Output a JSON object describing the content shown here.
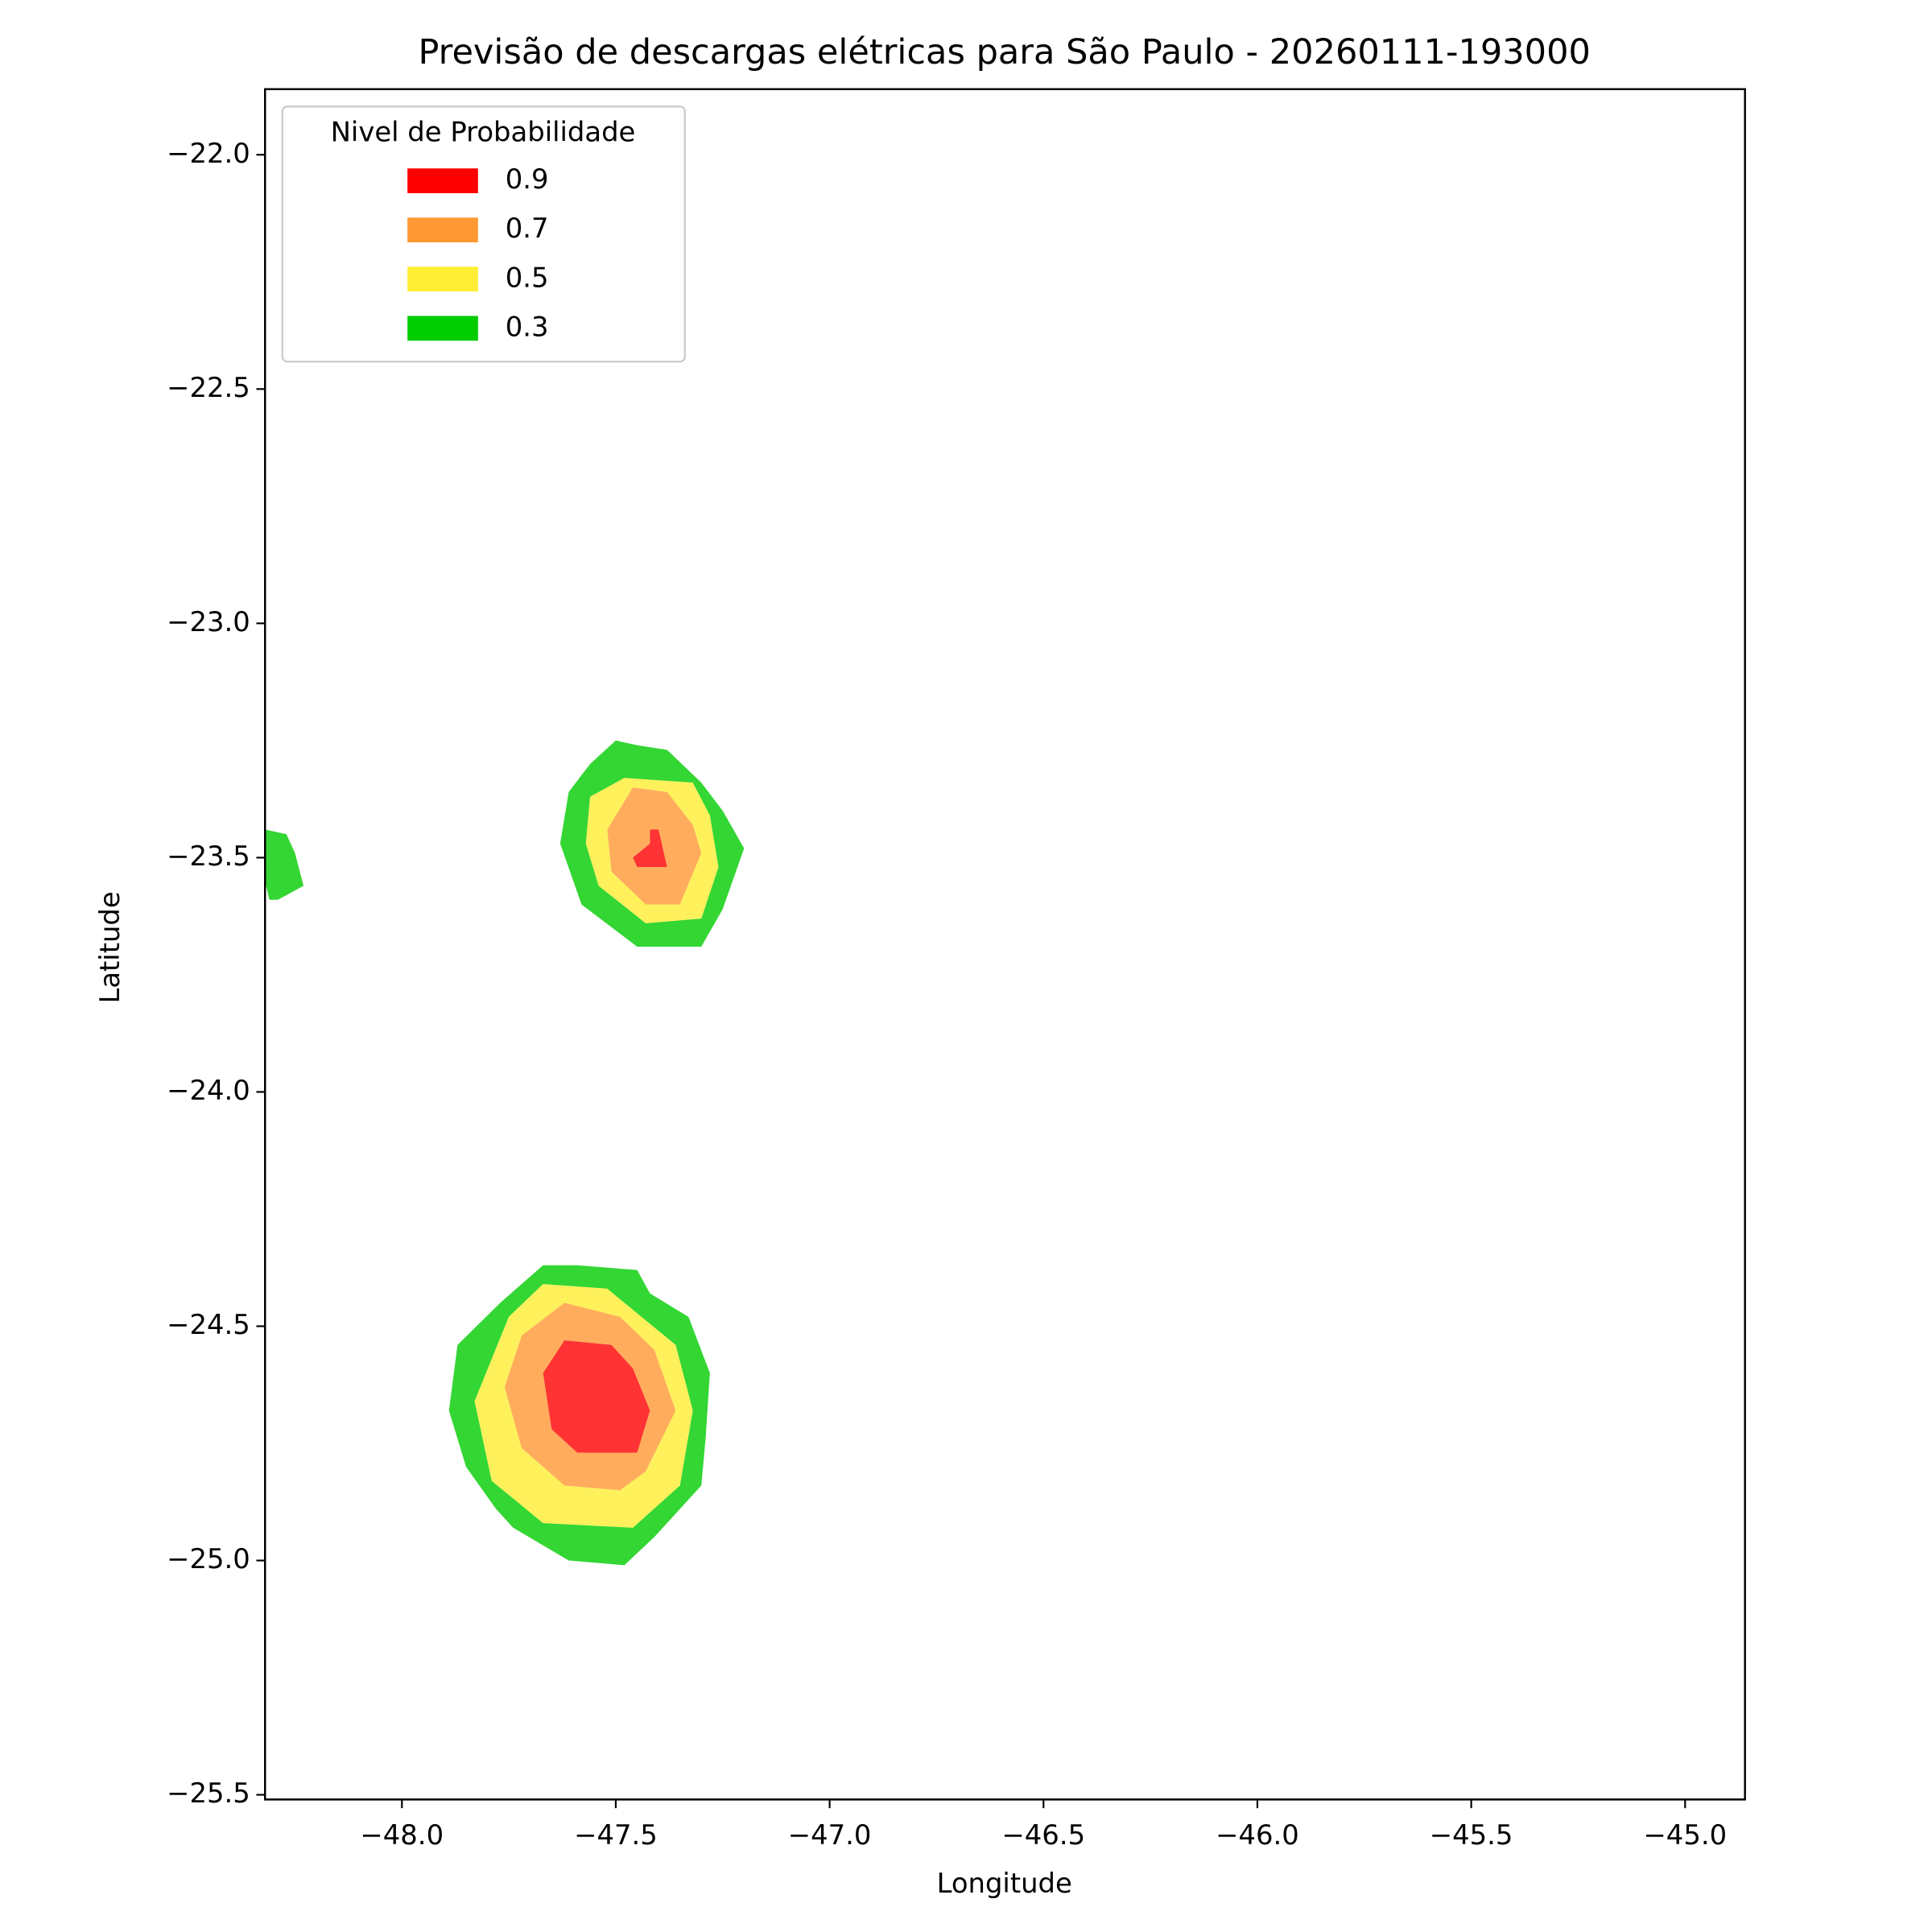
{
  "chart_data": {
    "type": "contour",
    "title": "Previsão de descargas elétricas para São Paulo - 20260111-193000",
    "xlabel": "Longitude",
    "ylabel": "Latitude",
    "xlim": [
      -48.32,
      -44.86
    ],
    "ylim": [
      -25.51,
      -21.86
    ],
    "xticks": [
      {
        "value": -48.0,
        "label": "−48.0"
      },
      {
        "value": -47.5,
        "label": "−47.5"
      },
      {
        "value": -47.0,
        "label": "−47.0"
      },
      {
        "value": -46.5,
        "label": "−46.5"
      },
      {
        "value": -46.0,
        "label": "−46.0"
      },
      {
        "value": -45.5,
        "label": "−45.5"
      },
      {
        "value": -45.0,
        "label": "−45.0"
      }
    ],
    "yticks": [
      {
        "value": -22.0,
        "label": "−22.0"
      },
      {
        "value": -22.5,
        "label": "−22.5"
      },
      {
        "value": -23.0,
        "label": "−23.0"
      },
      {
        "value": -23.5,
        "label": "−23.5"
      },
      {
        "value": -24.0,
        "label": "−24.0"
      },
      {
        "value": -24.5,
        "label": "−24.5"
      },
      {
        "value": -25.0,
        "label": "−25.0"
      },
      {
        "value": -25.5,
        "label": "−25.5"
      }
    ],
    "legend_title": "Nivel de Probabilidade",
    "legend_position": "upper left",
    "series": [
      {
        "name": "0.9",
        "color": "#ff0000",
        "polygons": [
          [
            [
              -47.42,
              -23.44
            ],
            [
              -47.4,
              -23.44
            ],
            [
              -47.38,
              -23.52
            ],
            [
              -47.45,
              -23.52
            ],
            [
              -47.46,
              -23.5
            ],
            [
              -47.42,
              -23.47
            ]
          ],
          [
            [
              -47.62,
              -24.53
            ],
            [
              -47.51,
              -24.54
            ],
            [
              -47.46,
              -24.59
            ],
            [
              -47.42,
              -24.68
            ],
            [
              -47.45,
              -24.77
            ],
            [
              -47.59,
              -24.77
            ],
            [
              -47.65,
              -24.72
            ],
            [
              -47.67,
              -24.6
            ]
          ]
        ]
      },
      {
        "name": "0.7",
        "color": "#ff9933",
        "polygons": [
          [
            [
              -47.46,
              -23.35
            ],
            [
              -47.38,
              -23.36
            ],
            [
              -47.32,
              -23.43
            ],
            [
              -47.3,
              -23.49
            ],
            [
              -47.35,
              -23.6
            ],
            [
              -47.43,
              -23.6
            ],
            [
              -47.51,
              -23.53
            ],
            [
              -47.52,
              -23.44
            ]
          ],
          [
            [
              -47.62,
              -24.45
            ],
            [
              -47.49,
              -24.48
            ],
            [
              -47.41,
              -24.55
            ],
            [
              -47.36,
              -24.68
            ],
            [
              -47.43,
              -24.81
            ],
            [
              -47.49,
              -24.85
            ],
            [
              -47.62,
              -24.84
            ],
            [
              -47.72,
              -24.76
            ],
            [
              -47.76,
              -24.63
            ],
            [
              -47.72,
              -24.52
            ]
          ]
        ]
      },
      {
        "name": "0.5",
        "color": "#ffee33",
        "polygons": [
          [
            [
              -47.48,
              -23.33
            ],
            [
              -47.32,
              -23.34
            ],
            [
              -47.28,
              -23.41
            ],
            [
              -47.26,
              -23.52
            ],
            [
              -47.3,
              -23.63
            ],
            [
              -47.43,
              -23.64
            ],
            [
              -47.54,
              -23.56
            ],
            [
              -47.57,
              -23.47
            ],
            [
              -47.56,
              -23.37
            ]
          ],
          [
            [
              -47.67,
              -24.41
            ],
            [
              -47.52,
              -24.42
            ],
            [
              -47.36,
              -24.54
            ],
            [
              -47.32,
              -24.68
            ],
            [
              -47.35,
              -24.84
            ],
            [
              -47.46,
              -24.93
            ],
            [
              -47.67,
              -24.92
            ],
            [
              -47.79,
              -24.83
            ],
            [
              -47.83,
              -24.66
            ],
            [
              -47.75,
              -24.48
            ]
          ]
        ]
      },
      {
        "name": "0.3",
        "color": "#00cc00",
        "polygons": [
          [
            [
              -47.5,
              -23.25
            ],
            [
              -47.45,
              -23.26
            ],
            [
              -47.38,
              -23.27
            ],
            [
              -47.3,
              -23.34
            ],
            [
              -47.25,
              -23.4
            ],
            [
              -47.2,
              -23.48
            ],
            [
              -47.25,
              -23.61
            ],
            [
              -47.3,
              -23.69
            ],
            [
              -47.45,
              -23.69
            ],
            [
              -47.58,
              -23.6
            ],
            [
              -47.63,
              -23.47
            ],
            [
              -47.61,
              -23.36
            ],
            [
              -47.56,
              -23.3
            ]
          ],
          [
            [
              -47.67,
              -24.37
            ],
            [
              -47.59,
              -24.37
            ],
            [
              -47.45,
              -24.38
            ],
            [
              -47.42,
              -24.43
            ],
            [
              -47.33,
              -24.48
            ],
            [
              -47.28,
              -24.6
            ],
            [
              -47.29,
              -24.74
            ],
            [
              -47.3,
              -24.84
            ],
            [
              -47.41,
              -24.95
            ],
            [
              -47.48,
              -25.01
            ],
            [
              -47.61,
              -25.0
            ],
            [
              -47.74,
              -24.93
            ],
            [
              -47.78,
              -24.89
            ],
            [
              -47.85,
              -24.8
            ],
            [
              -47.89,
              -24.68
            ],
            [
              -47.87,
              -24.54
            ],
            [
              -47.77,
              -24.45
            ]
          ],
          [
            [
              -48.32,
              -23.44
            ],
            [
              -48.27,
              -23.45
            ],
            [
              -48.25,
              -23.49
            ],
            [
              -48.23,
              -23.56
            ],
            [
              -48.27,
              -23.58
            ],
            [
              -48.29,
              -23.59
            ],
            [
              -48.31,
              -23.59
            ],
            [
              -48.32,
              -23.55
            ]
          ]
        ]
      }
    ]
  }
}
